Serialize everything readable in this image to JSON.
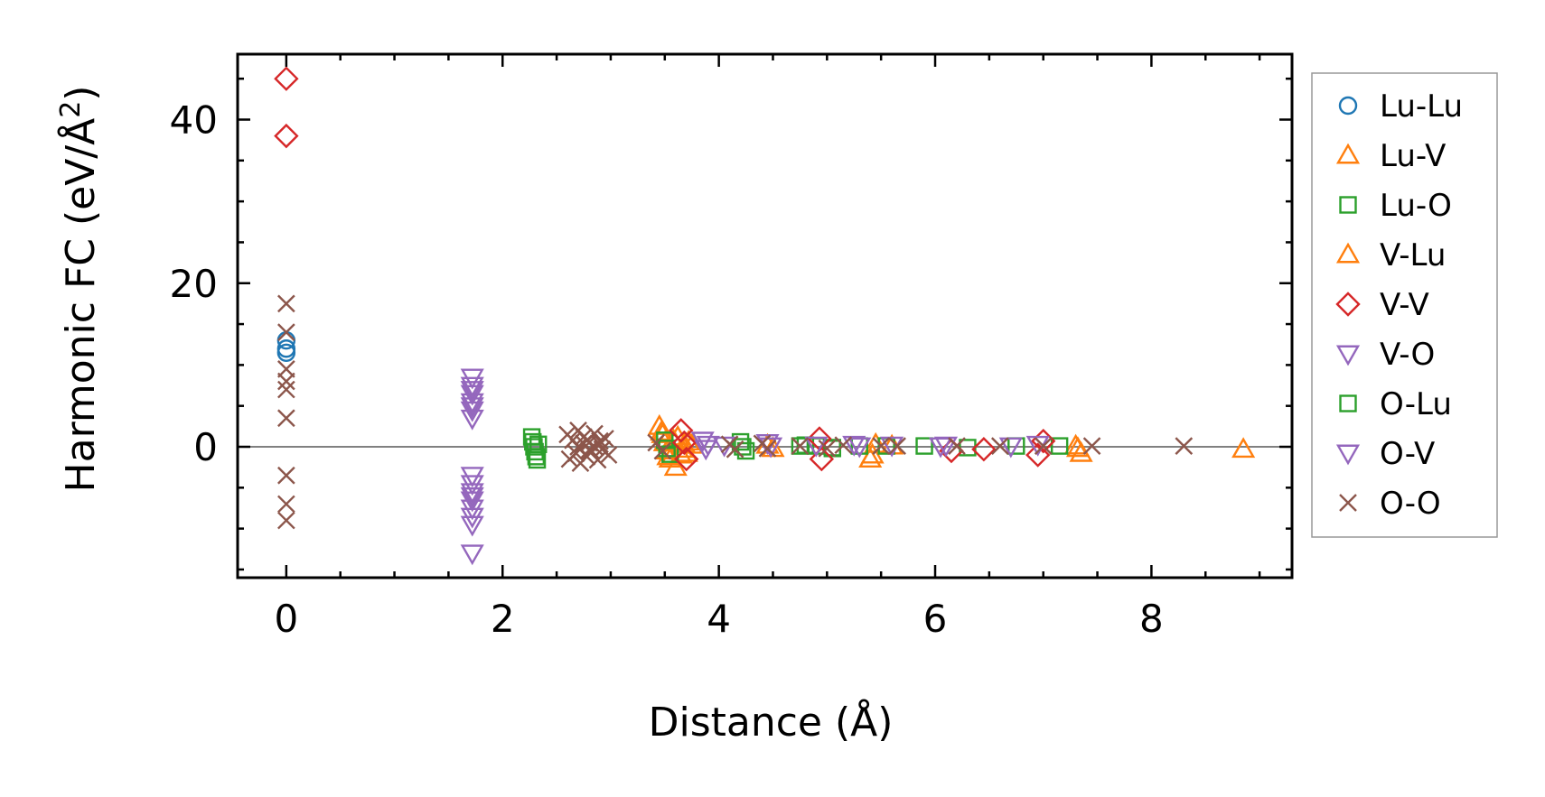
{
  "chart_data": {
    "type": "scatter",
    "title": "",
    "xlabel": "Distance (Å)",
    "ylabel_main": "Harmonic FC (eV/Å",
    "ylabel_sup": "2",
    "ylabel_close": ")",
    "xlim": [
      -0.45,
      9.3
    ],
    "ylim": [
      -16,
      48
    ],
    "xticks": [
      0,
      2,
      4,
      6,
      8
    ],
    "xtick_labels": [
      "0",
      "2",
      "4",
      "6",
      "8"
    ],
    "yticks": [
      0,
      20,
      40
    ],
    "ytick_labels": [
      "0",
      "20",
      "40"
    ],
    "zero_line": true,
    "legend_position": "right",
    "series": [
      {
        "name": "Lu-Lu",
        "marker": "circle",
        "color": "#1f77b4",
        "x": [
          0,
          0,
          0
        ],
        "y": [
          13,
          12,
          11.5
        ]
      },
      {
        "name": "Lu-V",
        "marker": "triangle-up",
        "color": "#ff7f0e",
        "x": [
          3.45,
          3.48,
          3.5,
          3.52,
          3.55,
          3.6,
          3.62,
          3.65,
          3.68,
          3.7,
          3.75,
          4.45,
          5.4,
          5.45,
          5.6,
          7.3,
          7.35,
          8.85
        ],
        "y": [
          2.5,
          1.5,
          0.5,
          -0.5,
          -1.5,
          -2.5,
          1.2,
          -1.0,
          0.3,
          -0.8,
          0.2,
          0.2,
          -1.5,
          0.3,
          0.1,
          0.1,
          -0.8,
          -0.3
        ]
      },
      {
        "name": "Lu-O",
        "marker": "square",
        "color": "#2ca02c",
        "x": [
          4.75,
          4.9,
          5.05,
          5.3,
          5.55,
          5.9,
          6.3,
          6.75,
          7.15
        ],
        "y": [
          0.1,
          0.1,
          -0.1,
          0.1,
          0.1,
          0.1,
          -0.1,
          0.1,
          0.1
        ]
      },
      {
        "name": "V-Lu",
        "marker": "triangle-up",
        "color": "#ff7f0e",
        "x": [
          3.47,
          3.53,
          3.58,
          3.66,
          3.72,
          4.5,
          5.42,
          7.32
        ],
        "y": [
          1.8,
          -1.2,
          0.8,
          -0.3,
          0.6,
          -0.2,
          -1.0,
          -0.2
        ]
      },
      {
        "name": "V-V",
        "marker": "diamond",
        "color": "#d62728",
        "x": [
          0,
          0,
          3.65,
          3.68,
          3.7,
          4.93,
          4.95,
          6.15,
          6.45,
          6.95,
          7.0
        ],
        "y": [
          45,
          38,
          2.0,
          0.5,
          -1.5,
          1.0,
          -1.5,
          -0.5,
          -0.3,
          -1.0,
          0.7
        ]
      },
      {
        "name": "V-O",
        "marker": "triangle-down",
        "color": "#9467bd",
        "x": [
          1.72,
          1.72,
          1.72,
          1.72,
          1.72,
          1.72,
          1.72,
          1.72,
          1.72,
          1.72,
          1.72,
          1.72,
          1.72,
          1.72,
          3.85,
          3.9,
          4.05,
          4.45,
          4.9,
          5.25,
          5.6,
          6.1,
          6.7,
          6.95
        ],
        "y": [
          8.5,
          7.5,
          6.5,
          5.5,
          4.5,
          3.5,
          -3.5,
          -4.5,
          -5.5,
          -6.5,
          -7.5,
          -8.5,
          -9.5,
          -13,
          0.8,
          0.3,
          0.2,
          0.5,
          0.2,
          0.3,
          0.2,
          0.2,
          0.1,
          0.3
        ]
      },
      {
        "name": "O-Lu",
        "marker": "square",
        "color": "#2ca02c",
        "x": [
          2.27,
          2.28,
          2.29,
          2.3,
          2.31,
          2.32,
          2.33,
          3.5,
          3.52,
          3.55,
          4.2,
          4.22,
          4.25,
          4.8,
          5.05
        ],
        "y": [
          1.2,
          0.6,
          0.0,
          -0.6,
          -1.2,
          -1.6,
          0.3,
          0.8,
          -0.2,
          -0.9,
          0.6,
          0.0,
          -0.5,
          0.2,
          -0.2
        ]
      },
      {
        "name": "O-V",
        "marker": "triangle-down",
        "color": "#9467bd",
        "x": [
          1.72,
          1.72,
          1.72,
          3.88,
          4.48,
          5.3,
          6.05
        ],
        "y": [
          7.0,
          5.0,
          -6.0,
          -0.2,
          0.1,
          0.1,
          0.1
        ]
      },
      {
        "name": "O-O",
        "marker": "x",
        "color": "#8c564b",
        "x": [
          0,
          0,
          0,
          0,
          0,
          0,
          0,
          0,
          0,
          2.6,
          2.62,
          2.65,
          2.68,
          2.7,
          2.72,
          2.75,
          2.78,
          2.8,
          2.82,
          2.85,
          2.88,
          2.9,
          2.92,
          2.95,
          2.98,
          2.7,
          2.75,
          2.8,
          2.85,
          2.9,
          3.42,
          3.48,
          4.1,
          4.15,
          4.4,
          4.45,
          4.75,
          5.0,
          5.15,
          5.5,
          5.65,
          6.2,
          6.6,
          7.0,
          7.45,
          8.3
        ],
        "y": [
          17.5,
          14,
          9.5,
          8,
          7,
          3.5,
          -3.5,
          -7,
          -9,
          1.5,
          -1.5,
          0.8,
          -0.8,
          2.0,
          -2.0,
          1.2,
          -1.2,
          0.5,
          -0.5,
          1.6,
          -1.6,
          0.3,
          -0.3,
          1.0,
          -1.0,
          0.0,
          0.4,
          -0.4,
          0.0,
          0.7,
          0.5,
          -0.5,
          0.3,
          -0.3,
          0.4,
          -0.2,
          0.1,
          -0.2,
          0.2,
          0.1,
          0.1,
          0.1,
          0.1,
          0.1,
          0.1,
          0.1
        ]
      }
    ]
  }
}
